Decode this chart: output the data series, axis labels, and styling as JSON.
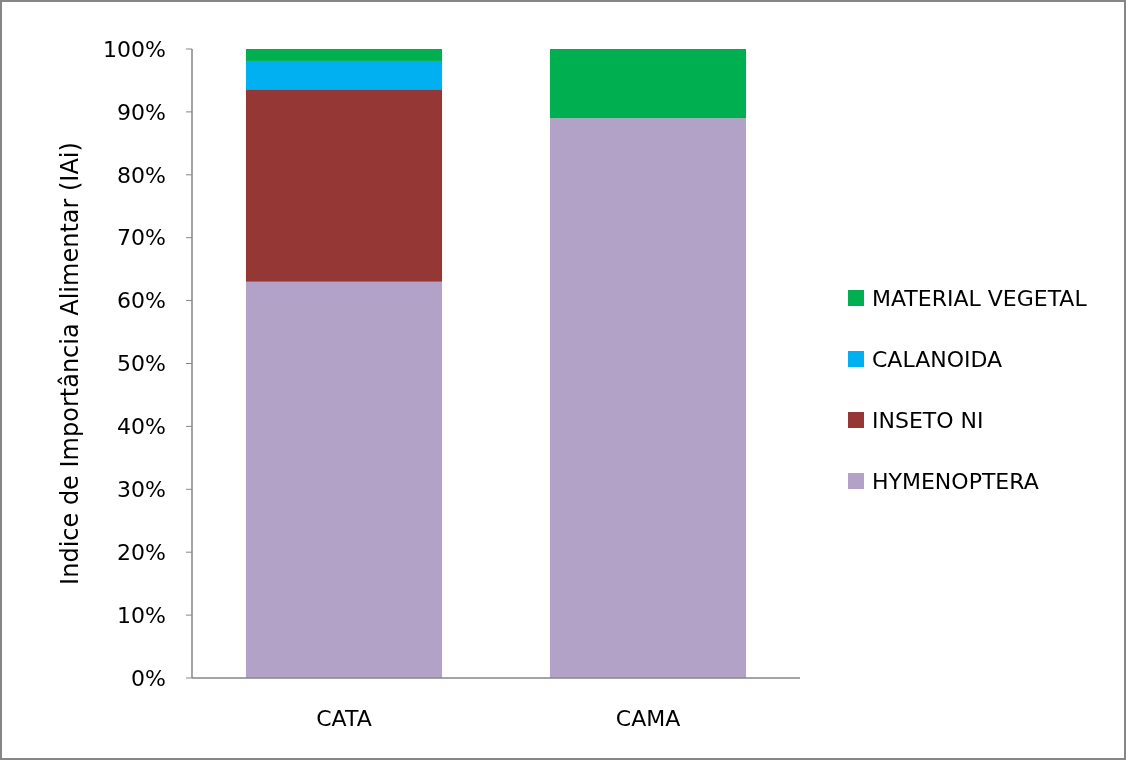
{
  "chart_data": {
    "type": "bar",
    "stacked": true,
    "ylabel": "Indice de Importância Alimentar (IAi)",
    "categories": [
      "CATA",
      "CAMA"
    ],
    "series": [
      {
        "name": "HYMENOPTERA",
        "color": "#b3a2c7",
        "values": [
          63,
          89
        ]
      },
      {
        "name": "INSETO NI",
        "color": "#953735",
        "values": [
          30.6,
          0
        ]
      },
      {
        "name": "CALANOIDA",
        "color": "#00b0f0",
        "values": [
          4.5,
          0
        ]
      },
      {
        "name": "MATERIAL VEGETAL",
        "color": "#00b050",
        "values": [
          1.9,
          11
        ]
      }
    ],
    "ylim": [
      0,
      100
    ],
    "yticks": [
      {
        "value": 0,
        "label": "0%"
      },
      {
        "value": 10,
        "label": "10%"
      },
      {
        "value": 20,
        "label": "20%"
      },
      {
        "value": 30,
        "label": "30%"
      },
      {
        "value": 40,
        "label": "40%"
      },
      {
        "value": 50,
        "label": "50%"
      },
      {
        "value": 60,
        "label": "60%"
      },
      {
        "value": 70,
        "label": "70%"
      },
      {
        "value": 80,
        "label": "80%"
      },
      {
        "value": 90,
        "label": "90%"
      },
      {
        "value": 100,
        "label": "100%"
      }
    ],
    "grid": false,
    "legend": "right"
  }
}
